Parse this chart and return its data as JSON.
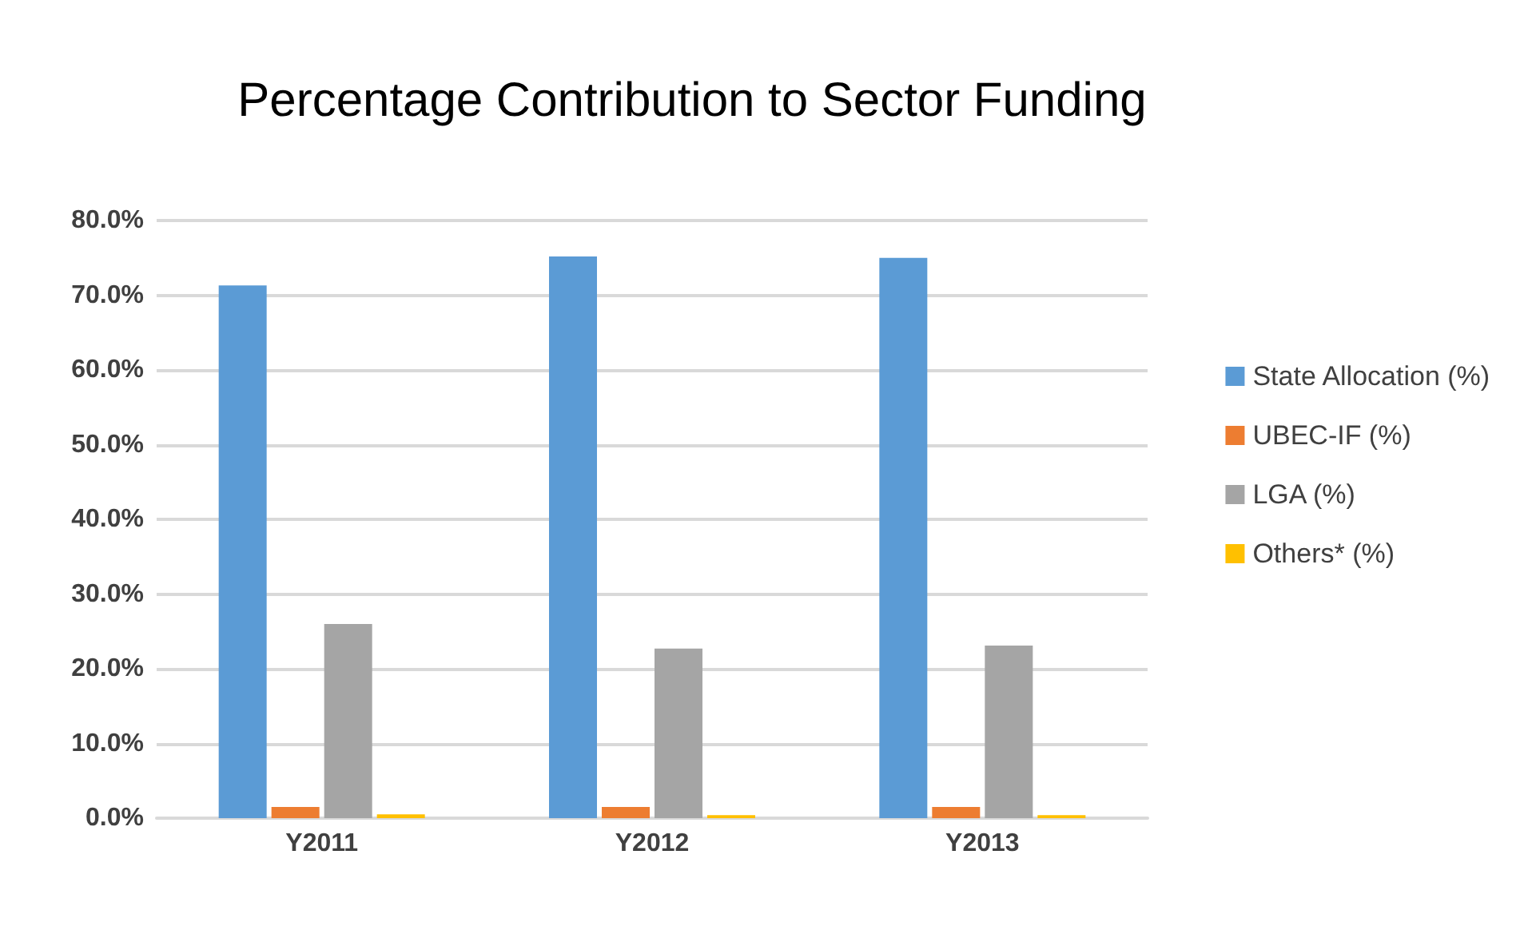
{
  "chart_data": {
    "type": "bar",
    "title": "Percentage Contribution to Sector Funding",
    "categories": [
      "Y2011",
      "Y2012",
      "Y2013"
    ],
    "series": [
      {
        "name": "State Allocation (%)",
        "color": "#5b9bd5",
        "values": [
          71.3,
          75.2,
          75.0
        ]
      },
      {
        "name": "UBEC-IF (%)",
        "color": "#ed7d31",
        "values": [
          1.5,
          1.5,
          1.5
        ]
      },
      {
        "name": "LGA (%)",
        "color": "#a5a5a5",
        "values": [
          26.0,
          22.7,
          23.1
        ]
      },
      {
        "name": "Others* (%)",
        "color": "#ffc000",
        "values": [
          0.5,
          0.4,
          0.4
        ]
      }
    ],
    "ylim": [
      0,
      80
    ],
    "yticks": [
      {
        "value": 0,
        "label": "0.0%"
      },
      {
        "value": 10,
        "label": "10.0%"
      },
      {
        "value": 20,
        "label": "20.0%"
      },
      {
        "value": 30,
        "label": "30.0%"
      },
      {
        "value": 40,
        "label": "40.0%"
      },
      {
        "value": 50,
        "label": "50.0%"
      },
      {
        "value": 60,
        "label": "60.0%"
      },
      {
        "value": 70,
        "label": "70.0%"
      },
      {
        "value": 80,
        "label": "80.0%"
      }
    ],
    "grid": "y",
    "legend": "right"
  }
}
